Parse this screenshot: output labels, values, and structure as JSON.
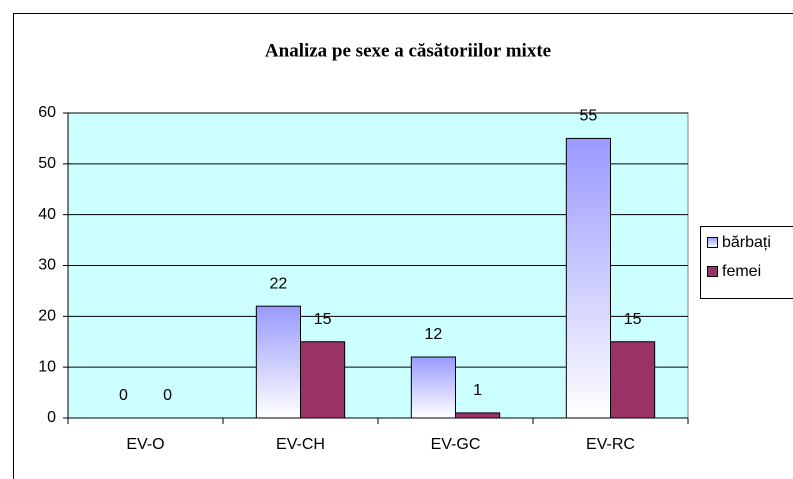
{
  "chart_data": {
    "type": "bar",
    "title": "Analiza pe sexe a căsătoriilor mixte",
    "categories": [
      "EV-O",
      "EV-CH",
      "EV-GC",
      "EV-RC"
    ],
    "series": [
      {
        "name": "bărbați",
        "color": "#9999ff",
        "values": [
          0,
          22,
          12,
          55
        ]
      },
      {
        "name": "femei",
        "color": "#993366",
        "values": [
          0,
          15,
          1,
          15
        ]
      }
    ],
    "ylim": [
      0,
      60
    ],
    "yticks": [
      0,
      10,
      20,
      30,
      40,
      50,
      60
    ],
    "grid": true,
    "legend": "right",
    "plot_background": "#ccffff"
  }
}
